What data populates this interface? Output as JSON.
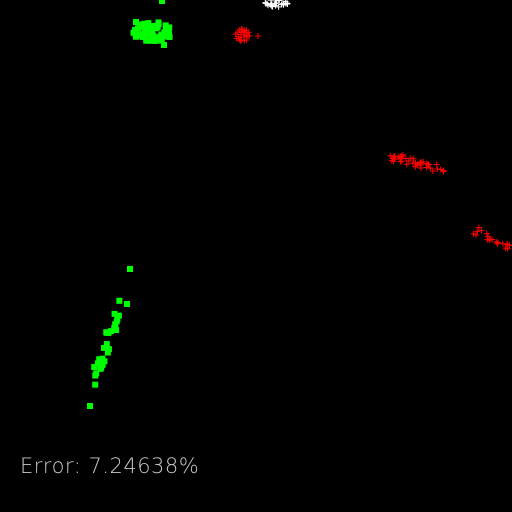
{
  "status": {
    "text": "Error: 7.24638%"
  }
}
